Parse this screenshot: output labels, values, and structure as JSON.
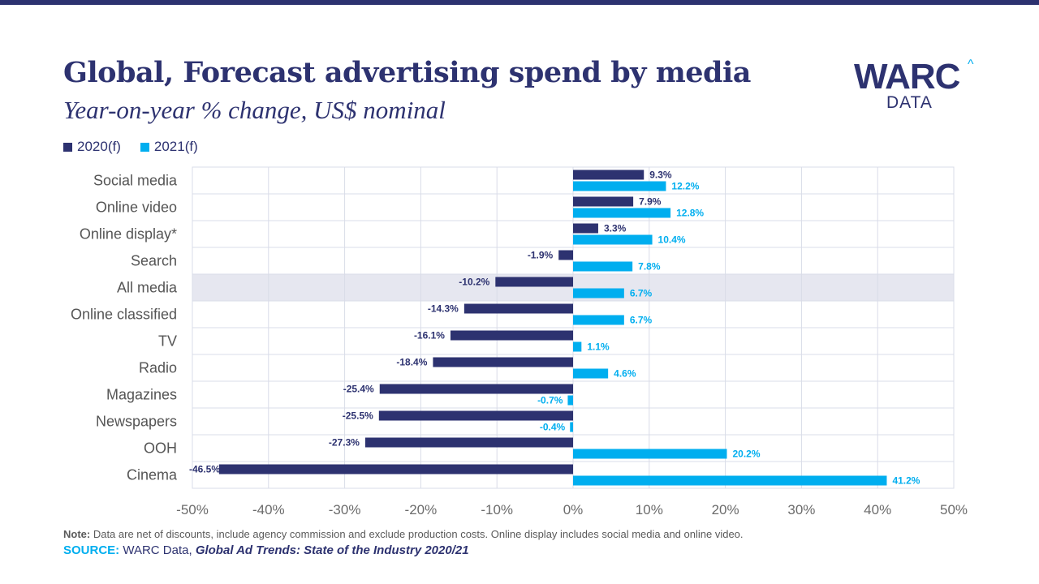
{
  "colors": {
    "navy": "#2d3270",
    "cyan": "#00aeef",
    "grid": "#d9dce8",
    "highlight": "#e6e7f0",
    "axis_text": "#6b6b6b",
    "category_text": "#555555"
  },
  "header": {
    "title": "Global, Forecast advertising spend by media",
    "subtitle": "Year-on-year % change, US$ nominal"
  },
  "logo": {
    "main": "WARC",
    "caret": "^",
    "sub": "DATA"
  },
  "legend": [
    {
      "label": "2020(f)",
      "color": "#2d3270"
    },
    {
      "label": "2021(f)",
      "color": "#00aeef"
    }
  ],
  "chart_data": {
    "type": "bar",
    "orientation": "horizontal",
    "title": "Global, Forecast advertising spend by media",
    "subtitle": "Year-on-year % change, US$ nominal",
    "categories": [
      "Social media",
      "Online video",
      "Online display*",
      "Search",
      "All media",
      "Online classified",
      "TV",
      "Radio",
      "Magazines",
      "Newspapers",
      "OOH",
      "Cinema"
    ],
    "highlighted_category": "All media",
    "series": [
      {
        "name": "2020(f)",
        "color": "#2d3270",
        "values": [
          9.3,
          7.9,
          3.3,
          -1.9,
          -10.2,
          -14.3,
          -16.1,
          -18.4,
          -25.4,
          -25.5,
          -27.3,
          -46.5
        ]
      },
      {
        "name": "2021(f)",
        "color": "#00aeef",
        "values": [
          12.2,
          12.8,
          10.4,
          7.8,
          6.7,
          6.7,
          1.1,
          4.6,
          -0.7,
          -0.4,
          20.2,
          41.2
        ]
      }
    ],
    "xlim": [
      -50,
      50
    ],
    "xticks": [
      -50,
      -40,
      -30,
      -20,
      -10,
      0,
      10,
      20,
      30,
      40,
      50
    ],
    "tick_suffix": "%",
    "label_decimals": 1,
    "grid": true,
    "legend_position": "top-left"
  },
  "footer": {
    "note_label": "Note:",
    "note_text": " Data are net of discounts, include agency commission and exclude production costs. Online display includes social media and online video.",
    "source_label": "SOURCE:",
    "source_text": " WARC Data, ",
    "source_title": "Global Ad Trends: State of the Industry 2020/21"
  }
}
